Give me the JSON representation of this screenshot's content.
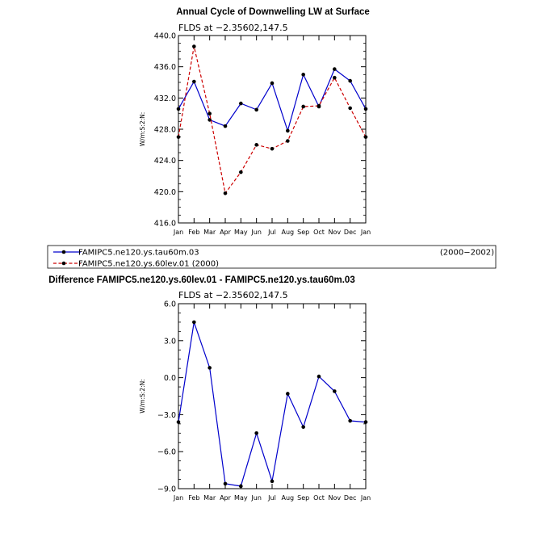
{
  "chart_data": [
    {
      "type": "line",
      "title": "Annual Cycle of Downwelling LW at Surface",
      "subtitle": "FLDS at −2.35602,147.5",
      "ylabel": "W/m:S:2:N:",
      "categories": [
        "Jan",
        "Feb",
        "Mar",
        "Apr",
        "May",
        "Jun",
        "Jul",
        "Aug",
        "Sep",
        "Oct",
        "Nov",
        "Dec",
        "Jan"
      ],
      "ylim": [
        416.0,
        440.0
      ],
      "yticks": [
        "416.0",
        "420.0",
        "424.0",
        "428.0",
        "432.0",
        "436.0",
        "440.0"
      ],
      "series": [
        {
          "name": "FAMIPC5.ne120.ys.tau60m.03",
          "color": "#0000cc",
          "dash": "solid",
          "values": [
            430.6,
            434.1,
            429.2,
            428.4,
            431.3,
            430.5,
            433.9,
            427.8,
            435.0,
            430.9,
            435.7,
            434.2,
            430.6
          ]
        },
        {
          "name": "FAMIPC5.ne120.ys.60lev.01",
          "color": "#cc0000",
          "dash": "dashed",
          "values": [
            427.0,
            438.6,
            430.0,
            419.8,
            422.5,
            426.0,
            425.5,
            426.5,
            430.9,
            431.0,
            434.6,
            430.7,
            427.0
          ]
        }
      ]
    },
    {
      "type": "line",
      "title": "Difference FAMIPC5.ne120.ys.60lev.01 - FAMIPC5.ne120.ys.tau60m.03",
      "subtitle": "FLDS at −2.35602,147.5",
      "ylabel": "W/m:S:2:N:",
      "categories": [
        "Jan",
        "Feb",
        "Mar",
        "Apr",
        "May",
        "Jun",
        "Jul",
        "Aug",
        "Sep",
        "Oct",
        "Nov",
        "Dec",
        "Jan"
      ],
      "ylim": [
        -9.0,
        6.0
      ],
      "yticks": [
        "−9.0",
        "−6.0",
        "−3.0",
        "0.0",
        "3.0",
        "6.0"
      ],
      "series": [
        {
          "color": "#0000cc",
          "dash": "solid",
          "values": [
            -3.6,
            4.5,
            0.8,
            -8.6,
            -8.8,
            -4.5,
            -8.4,
            -1.3,
            -4.0,
            0.1,
            -1.1,
            -3.5,
            -3.6
          ]
        }
      ]
    }
  ],
  "legend": {
    "entries": [
      {
        "label": "FAMIPC5.ne120.ys.tau60m.03",
        "color": "#0000cc",
        "dash": "solid"
      },
      {
        "label": "FAMIPC5.ne120.ys.60lev.01  (2000)",
        "color": "#cc0000",
        "dash": "dashed"
      }
    ],
    "period": "(2000−2002)"
  }
}
